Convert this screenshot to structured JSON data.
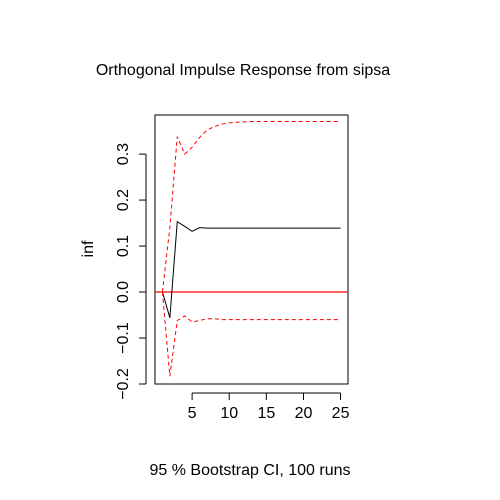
{
  "chart_data": {
    "type": "line",
    "title": "Orthogonal Impulse Response from sipsa",
    "xlabel": "95 % Bootstrap CI,  100 runs",
    "ylabel": "inf",
    "xlim": [
      0,
      26
    ],
    "ylim": [
      -0.2,
      0.385
    ],
    "x_ticks": [
      5,
      10,
      15,
      20,
      25
    ],
    "y_ticks": [
      -0.2,
      -0.1,
      0.0,
      0.1,
      0.2,
      0.3
    ],
    "y_tick_labels": [
      "−0.2",
      "−0.1",
      "0.0",
      "0.1",
      "0.2",
      "0.3"
    ],
    "reference_line": {
      "y": 0,
      "color": "#ff0000"
    },
    "x": [
      1,
      2,
      3,
      4,
      5,
      6,
      7,
      8,
      9,
      10,
      11,
      12,
      13,
      14,
      15,
      16,
      17,
      18,
      19,
      20,
      21,
      22,
      23,
      24,
      25
    ],
    "series": [
      {
        "role": "irf",
        "color": "#000000",
        "dash": "solid",
        "values": [
          0.0,
          -0.056,
          0.153,
          0.143,
          0.132,
          0.14,
          0.139,
          0.139,
          0.139,
          0.139,
          0.139,
          0.139,
          0.139,
          0.139,
          0.139,
          0.139,
          0.139,
          0.139,
          0.139,
          0.139,
          0.139,
          0.139,
          0.139,
          0.139,
          0.139
        ]
      },
      {
        "role": "upper",
        "color": "#ff0000",
        "dash": "dashed",
        "values": [
          0.0,
          0.14,
          0.338,
          0.3,
          0.315,
          0.336,
          0.352,
          0.36,
          0.365,
          0.368,
          0.369,
          0.37,
          0.371,
          0.371,
          0.371,
          0.371,
          0.371,
          0.371,
          0.371,
          0.371,
          0.371,
          0.371,
          0.371,
          0.371,
          0.371
        ]
      },
      {
        "role": "lower",
        "color": "#ff0000",
        "dash": "dashed",
        "values": [
          0.0,
          -0.183,
          -0.062,
          -0.052,
          -0.065,
          -0.062,
          -0.058,
          -0.058,
          -0.06,
          -0.06,
          -0.06,
          -0.06,
          -0.06,
          -0.06,
          -0.06,
          -0.06,
          -0.06,
          -0.06,
          -0.06,
          -0.06,
          -0.06,
          -0.06,
          -0.06,
          -0.06,
          -0.06
        ]
      }
    ]
  }
}
